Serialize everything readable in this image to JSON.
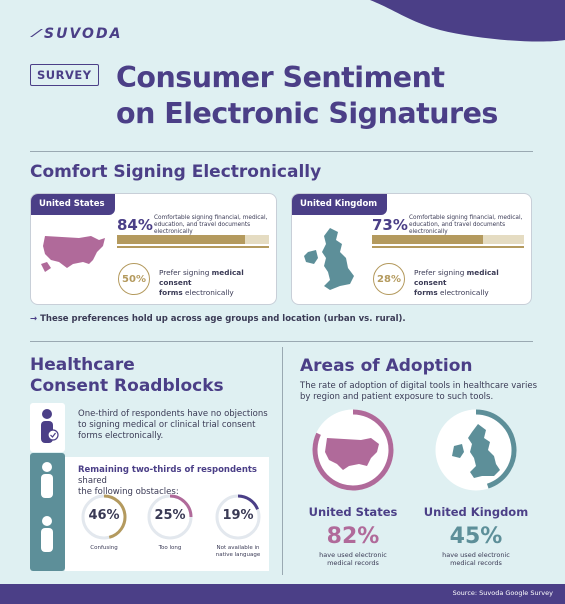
{
  "brand": {
    "logo": "SUVODA"
  },
  "header": {
    "badge": "SURVEY",
    "title_line1": "Consumer Sentiment",
    "title_line2": "on Electronic Signatures"
  },
  "comfort": {
    "heading": "Comfort Signing Electronically",
    "cards": [
      {
        "country": "United States",
        "pct": "84%",
        "pct_value": 84,
        "desc_line1": "Comfortable signing financial, medical,",
        "desc_line2": "education, and travel documents electronically",
        "pref_pct": "50%",
        "pref_line1_prefix": "Prefer signing ",
        "pref_line1_bold": "medical consent",
        "pref_line2_bold": "forms",
        "pref_line2_suffix": " electronically",
        "color": "#b06a9a"
      },
      {
        "country": "United Kingdom",
        "pct": "73%",
        "pct_value": 73,
        "desc_line1": "Comfortable signing financial, medical,",
        "desc_line2": "education, and travel documents electronically",
        "pref_pct": "28%",
        "pref_line1_prefix": "Prefer signing ",
        "pref_line1_bold": "medical consent",
        "pref_line2_bold": "forms",
        "pref_line2_suffix": " electronically",
        "color": "#5d8f99"
      }
    ],
    "note": "These preferences hold up across age groups and location (urban vs. rural)."
  },
  "roadblocks": {
    "heading_line1": "Healthcare",
    "heading_line2": "Consent Roadblocks",
    "one_third_line1": "One-third of respondents have no objections",
    "one_third_line2": "to signing medical or clinical trial consent",
    "one_third_line3": "forms electronically.",
    "two_thirds_bold": "Remaining two-thirds of respondents",
    "two_thirds_rest1": " shared",
    "two_thirds_line2": "the following obstacles:",
    "obstacles": [
      {
        "pct": "46%",
        "value": 46,
        "label_line1": "Confusing",
        "label_line2": "",
        "color": "#b49a5e"
      },
      {
        "pct": "25%",
        "value": 25,
        "label_line1": "Too long",
        "label_line2": "",
        "color": "#b06a9a"
      },
      {
        "pct": "19%",
        "value": 19,
        "label_line1": "Not available in",
        "label_line2": "native language",
        "color": "#4b3f87"
      }
    ]
  },
  "adoption": {
    "heading": "Areas of Adoption",
    "desc_line1": "The rate of adoption of digital tools in healthcare varies",
    "desc_line2": "by region and patient exposure to such tools.",
    "regions": [
      {
        "country": "United States",
        "pct": "82%",
        "value": 82,
        "desc_line1": "have used electronic",
        "desc_line2": "medical records",
        "color": "#b06a9a"
      },
      {
        "country": "United Kingdom",
        "pct": "45%",
        "value": 45,
        "desc_line1": "have used electronic",
        "desc_line2": "medical records",
        "color": "#5d8f99"
      }
    ]
  },
  "footer": {
    "source": "Source: Suvoda Google Survey"
  },
  "colors": {
    "purple": "#4b3f87",
    "mauve": "#b06a9a",
    "teal": "#5d8f99",
    "gold": "#b49a5e",
    "bg": "#dff0f2"
  }
}
